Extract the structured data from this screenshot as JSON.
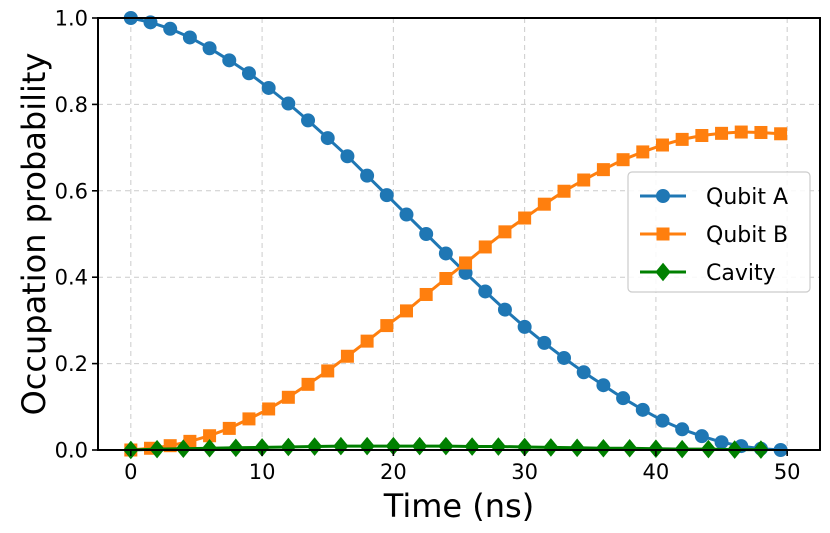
{
  "chart_data": {
    "type": "line",
    "title": "",
    "xlabel": "Time (ns)",
    "ylabel": "Occupation probability",
    "xlim": [
      -2.5,
      52.5
    ],
    "ylim": [
      0.0,
      1.0
    ],
    "xticks": [
      0,
      10,
      20,
      30,
      40,
      50
    ],
    "xtick_labels": [
      "0",
      "10",
      "20",
      "30",
      "40",
      "50"
    ],
    "yticks": [
      0.0,
      0.2,
      0.4,
      0.6,
      0.8,
      1.0
    ],
    "ytick_labels": [
      "0.0",
      "0.2",
      "0.4",
      "0.6",
      "0.8",
      "1.0"
    ],
    "grid": true,
    "legend_position": "center-right",
    "series": [
      {
        "name": "Qubit A",
        "color": "#1f77b4",
        "marker": "circle",
        "x": [
          0,
          1.5,
          3,
          4.5,
          6,
          7.5,
          9,
          10.5,
          12,
          13.5,
          15,
          16.5,
          18,
          19.5,
          21,
          22.5,
          24,
          25.5,
          27,
          28.5,
          30,
          31.5,
          33,
          34.5,
          36,
          37.5,
          39,
          40.5,
          42,
          43.5,
          45,
          46.5,
          48,
          49.5
        ],
        "values": [
          1.0,
          0.99,
          0.975,
          0.955,
          0.93,
          0.902,
          0.872,
          0.838,
          0.802,
          0.763,
          0.722,
          0.68,
          0.635,
          0.59,
          0.545,
          0.5,
          0.455,
          0.41,
          0.367,
          0.325,
          0.285,
          0.248,
          0.213,
          0.18,
          0.15,
          0.12,
          0.093,
          0.068,
          0.048,
          0.032,
          0.018,
          0.009,
          0.003,
          0.0
        ]
      },
      {
        "name": "Qubit B",
        "color": "#ff7f0e",
        "marker": "square",
        "x": [
          0,
          1.5,
          3,
          4.5,
          6,
          7.5,
          9,
          10.5,
          12,
          13.5,
          15,
          16.5,
          18,
          19.5,
          21,
          22.5,
          24,
          25.5,
          27,
          28.5,
          30,
          31.5,
          33,
          34.5,
          36,
          37.5,
          39,
          40.5,
          42,
          43.5,
          45,
          46.5,
          48,
          49.5
        ],
        "values": [
          0.0,
          0.004,
          0.01,
          0.02,
          0.033,
          0.05,
          0.072,
          0.095,
          0.122,
          0.152,
          0.183,
          0.217,
          0.252,
          0.288,
          0.322,
          0.36,
          0.397,
          0.433,
          0.47,
          0.505,
          0.537,
          0.569,
          0.599,
          0.625,
          0.649,
          0.672,
          0.69,
          0.706,
          0.719,
          0.728,
          0.733,
          0.736,
          0.735,
          0.732
        ]
      },
      {
        "name": "Cavity",
        "color": "#008000",
        "marker": "diamond",
        "x": [
          0,
          2,
          4,
          6,
          8,
          10,
          12,
          14,
          16,
          18,
          20,
          22,
          24,
          26,
          28,
          30,
          32,
          34,
          36,
          38,
          40,
          42,
          44,
          46,
          48
        ],
        "values": [
          0.0,
          0.002,
          0.003,
          0.004,
          0.005,
          0.006,
          0.007,
          0.008,
          0.009,
          0.009,
          0.009,
          0.009,
          0.009,
          0.008,
          0.008,
          0.007,
          0.006,
          0.005,
          0.004,
          0.004,
          0.003,
          0.002,
          0.002,
          0.001,
          0.001
        ]
      }
    ]
  }
}
